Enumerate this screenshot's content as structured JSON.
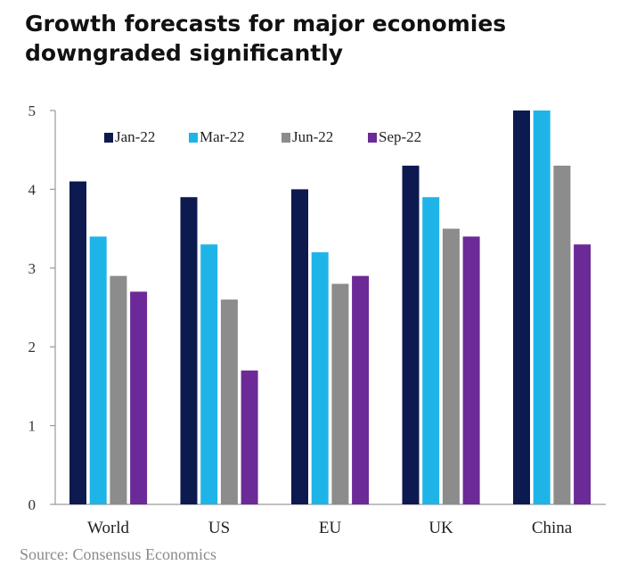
{
  "title_lines": [
    "Growth forecasts for major economies",
    "downgraded significantly"
  ],
  "source": "Source: Consensus Economics",
  "chart_data": {
    "type": "bar",
    "categories": [
      "World",
      "US",
      "EU",
      "UK",
      "China"
    ],
    "series": [
      {
        "name": "Jan-22",
        "color": "#0d1a4f",
        "values": [
          4.1,
          3.9,
          4.0,
          4.3,
          5.0
        ]
      },
      {
        "name": "Mar-22",
        "color": "#1fb4e8",
        "values": [
          3.4,
          3.3,
          3.2,
          3.9,
          5.0
        ]
      },
      {
        "name": "Jun-22",
        "color": "#8c8c8c",
        "values": [
          2.9,
          2.6,
          2.8,
          3.5,
          4.3
        ]
      },
      {
        "name": "Sep-22",
        "color": "#6b2a97",
        "values": [
          2.7,
          1.7,
          2.9,
          3.4,
          3.3
        ]
      }
    ],
    "yticks": [
      0,
      1,
      2,
      3,
      4,
      5
    ],
    "ylim": [
      0,
      5
    ],
    "legend_position": "top-left",
    "grid": false
  }
}
